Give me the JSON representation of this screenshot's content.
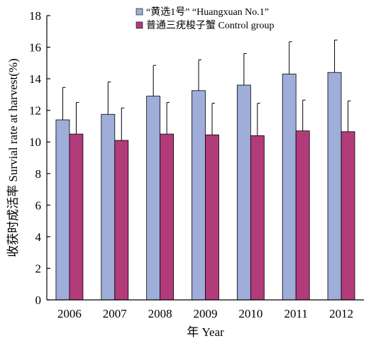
{
  "chart_data": {
    "type": "bar",
    "title": "",
    "xlabel": "年 Year",
    "ylabel": "收获时成活率 Survial rate at harvest(%)",
    "categories": [
      "2006",
      "2007",
      "2008",
      "2009",
      "2010",
      "2011",
      "2012"
    ],
    "ylim": [
      0,
      18
    ],
    "yticks": [
      0,
      2,
      4,
      6,
      8,
      10,
      12,
      14,
      16,
      18
    ],
    "grid": false,
    "legend_position": "top-right",
    "series": [
      {
        "name": "“黄选1号” “Huangxuan No.1”",
        "color": "#9fadd9",
        "values": [
          11.4,
          11.75,
          12.9,
          13.25,
          13.6,
          14.3,
          14.4
        ],
        "errors": [
          2.05,
          2.05,
          1.95,
          1.95,
          2.0,
          2.05,
          2.05
        ]
      },
      {
        "name": "普通三疣梭子蟹 Control group",
        "color": "#b23b7a",
        "values": [
          10.5,
          10.1,
          10.5,
          10.45,
          10.4,
          10.7,
          10.65
        ],
        "errors": [
          2.0,
          2.05,
          2.0,
          2.0,
          2.05,
          1.95,
          1.95
        ]
      }
    ]
  }
}
